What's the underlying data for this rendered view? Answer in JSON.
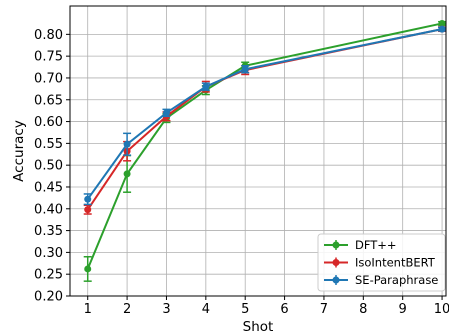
{
  "chart_data": {
    "type": "line",
    "xlabel": "Shot",
    "ylabel": "Accuracy",
    "x": [
      1,
      2,
      3,
      4,
      5,
      10
    ],
    "xlim": [
      0.55,
      10.1
    ],
    "ylim": [
      0.2,
      0.865
    ],
    "xticks": [
      "1",
      "2",
      "3",
      "4",
      "5",
      "6",
      "7",
      "8",
      "9",
      "10"
    ],
    "yticks": [
      "0.20",
      "0.25",
      "0.30",
      "0.35",
      "0.40",
      "0.45",
      "0.50",
      "0.55",
      "0.60",
      "0.65",
      "0.70",
      "0.75",
      "0.80"
    ],
    "grid": true,
    "legend_position": "bottom-right",
    "series": [
      {
        "name": "DFT++",
        "color": "#2ca02c",
        "values": [
          0.262,
          0.48,
          0.608,
          0.672,
          0.728,
          0.825
        ],
        "errors": [
          0.028,
          0.042,
          0.01,
          0.01,
          0.008,
          0.004
        ]
      },
      {
        "name": "IsoIntentBERT",
        "color": "#d62728",
        "values": [
          0.398,
          0.532,
          0.612,
          0.68,
          0.718,
          0.812
        ],
        "errors": [
          0.01,
          0.022,
          0.01,
          0.012,
          0.01,
          0.005
        ]
      },
      {
        "name": "SE-Paraphrase",
        "color": "#1f77b4",
        "values": [
          0.422,
          0.548,
          0.62,
          0.68,
          0.72,
          0.812
        ],
        "errors": [
          0.012,
          0.025,
          0.008,
          0.008,
          0.008,
          0.004
        ]
      }
    ]
  }
}
